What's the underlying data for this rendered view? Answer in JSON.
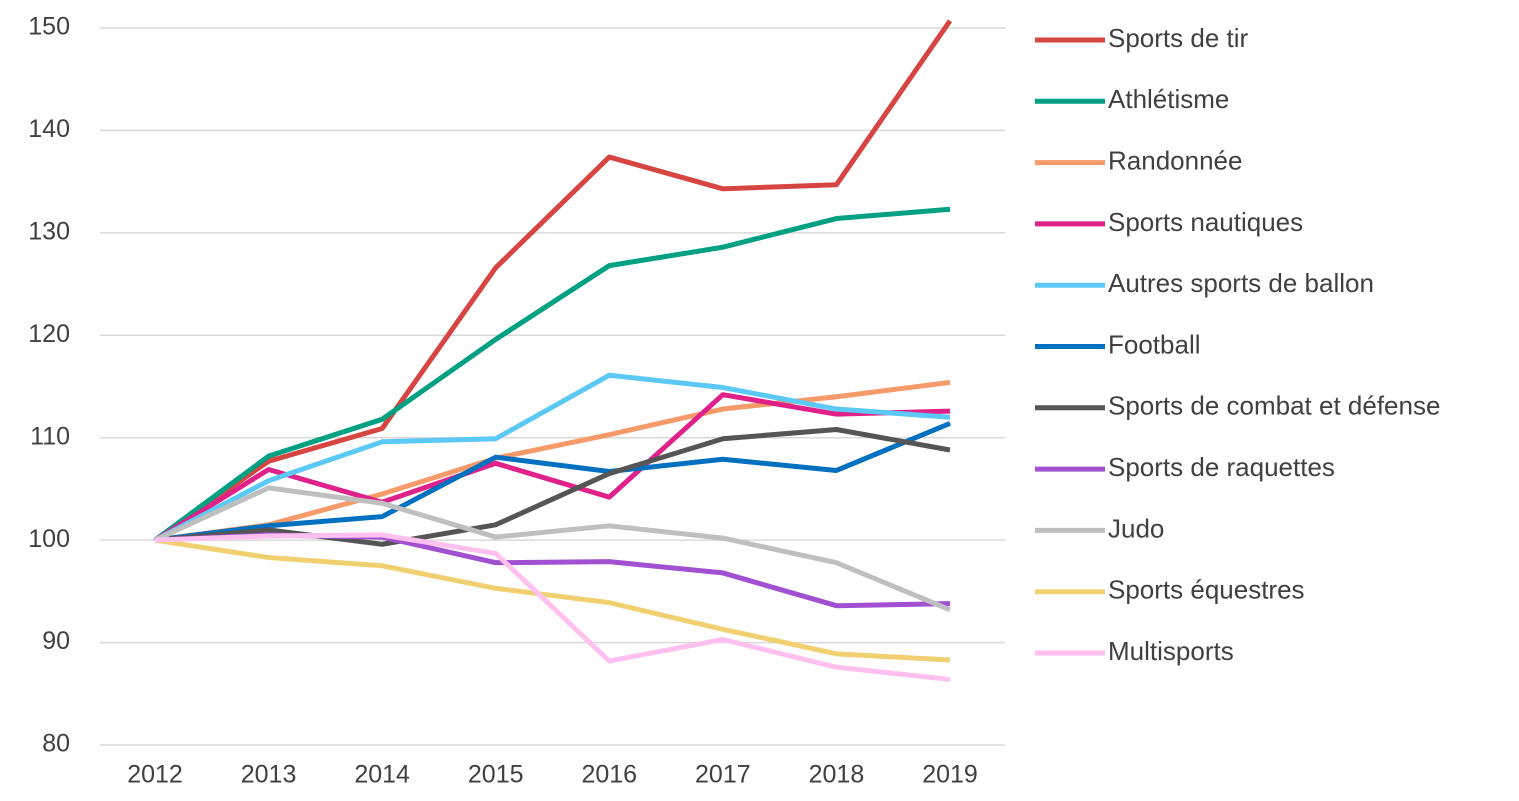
{
  "chart_data": {
    "type": "line",
    "x": [
      "2012",
      "2013",
      "2014",
      "2015",
      "2016",
      "2017",
      "2018",
      "2019"
    ],
    "series": [
      {
        "name": "Sports de tir",
        "color": "#d64541",
        "values": [
          100,
          107.7,
          110.9,
          126.6,
          137.4,
          134.3,
          134.7,
          150.7
        ]
      },
      {
        "name": "Athlétisme",
        "color": "#00a082",
        "values": [
          100,
          108.2,
          111.8,
          119.6,
          126.8,
          128.6,
          131.4,
          132.3
        ]
      },
      {
        "name": "Randonnée",
        "color": "#f79a6a",
        "values": [
          100,
          101.5,
          104.5,
          108,
          110.3,
          112.8,
          114,
          115.4
        ]
      },
      {
        "name": "Sports nautiques",
        "color": "#e0218a",
        "values": [
          100,
          106.9,
          103.7,
          107.5,
          104.2,
          114.2,
          112.3,
          112.6
        ]
      },
      {
        "name": "Autres sports de ballon",
        "color": "#5bc8f5",
        "values": [
          100,
          105.8,
          109.6,
          109.9,
          116.1,
          114.9,
          112.8,
          112
        ]
      },
      {
        "name": "Football",
        "color": "#0070c0",
        "values": [
          100,
          101.4,
          102.3,
          108.1,
          106.7,
          107.9,
          106.8,
          111.4
        ]
      },
      {
        "name": "Sports de combat et défense",
        "color": "#555555",
        "values": [
          100,
          101,
          99.6,
          101.5,
          106.5,
          109.9,
          110.8,
          108.8
        ]
      },
      {
        "name": "Sports de raquettes",
        "color": "#a050d0",
        "values": [
          100,
          100.5,
          100.3,
          97.8,
          97.9,
          96.8,
          93.6,
          93.8
        ]
      },
      {
        "name": "Judo",
        "color": "#bfbfbf",
        "values": [
          100,
          105.1,
          103.6,
          100.3,
          101.4,
          100.2,
          97.8,
          93.2
        ]
      },
      {
        "name": "Sports équestres",
        "color": "#f0d070",
        "values": [
          100,
          98.3,
          97.5,
          95.3,
          93.9,
          91.3,
          88.9,
          88.3
        ]
      },
      {
        "name": "Multisports",
        "color": "#ffc0f0",
        "values": [
          100,
          100.4,
          100.5,
          98.7,
          88.2,
          90.3,
          87.6,
          86.4
        ]
      }
    ],
    "ylim": [
      80,
      150
    ],
    "yticks": [
      80,
      90,
      100,
      110,
      120,
      130,
      140,
      150
    ],
    "grid": true,
    "legend": "right"
  }
}
